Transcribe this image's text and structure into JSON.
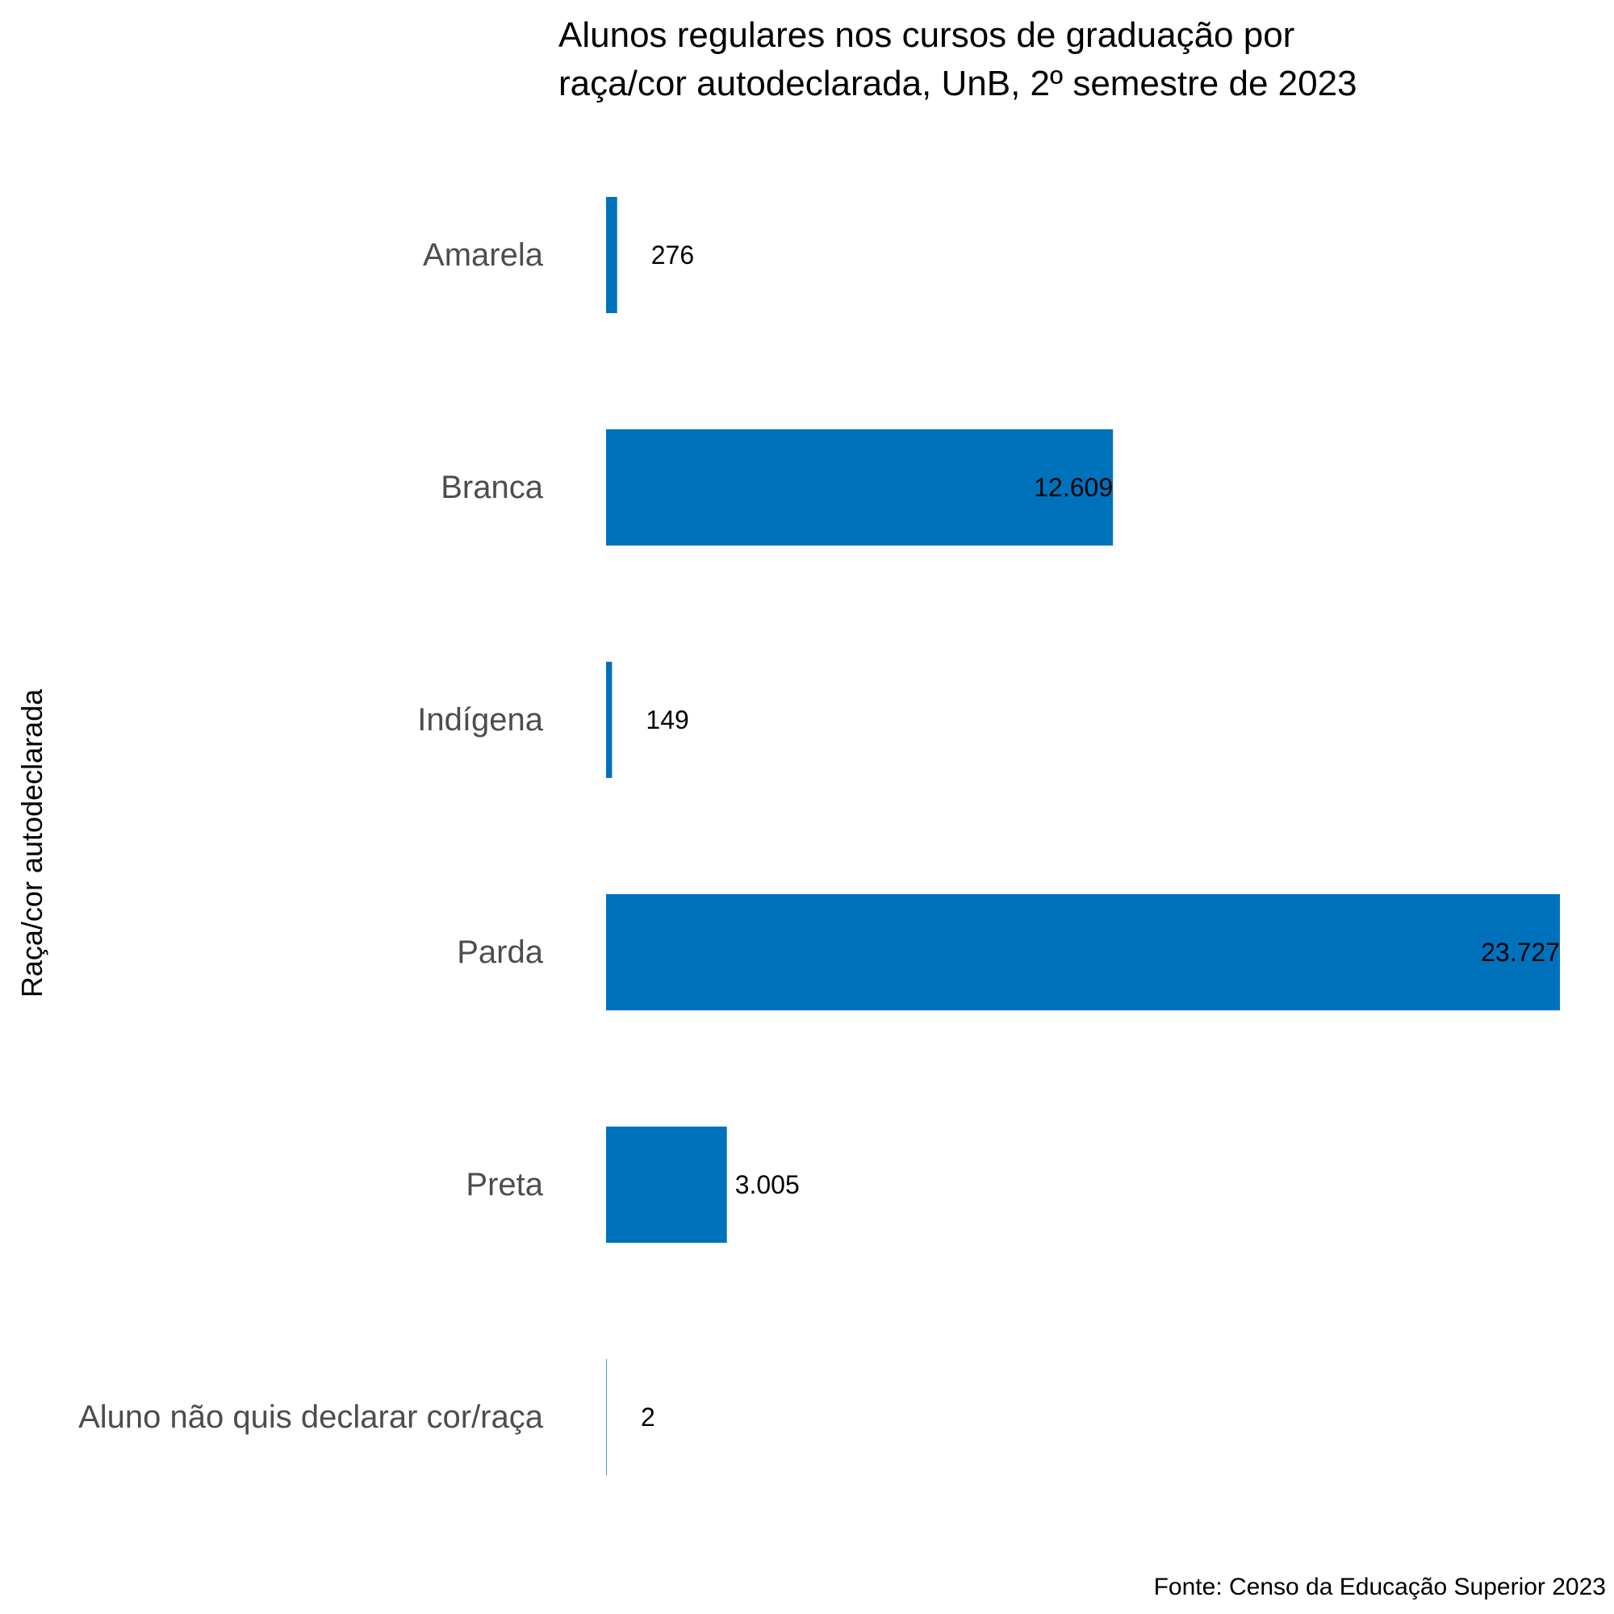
{
  "chart_data": {
    "type": "bar",
    "orientation": "horizontal",
    "title_lines": [
      "Alunos regulares nos cursos de graduação por",
      "raça/cor autodeclarada, UnB, 2º semestre de 2023"
    ],
    "ylabel": "Raça/cor autodeclarada",
    "xlabel": "",
    "caption": "Fonte: Censo da Educação Superior 2023",
    "categories": [
      "Amarela",
      "Branca",
      "Indígena",
      "Parda",
      "Preta",
      "Aluno não quis declarar cor/raça"
    ],
    "values": [
      276,
      12609,
      149,
      23727,
      3005,
      2
    ],
    "value_labels": [
      "276",
      "12.609",
      "149",
      "23.727",
      "3.005",
      "2"
    ],
    "xlim": [
      0,
      23727
    ],
    "grid": false,
    "legend": "none",
    "colors": {
      "bar": "#0072bc",
      "category_label": "#4d4d4d",
      "text": "#000000"
    }
  }
}
